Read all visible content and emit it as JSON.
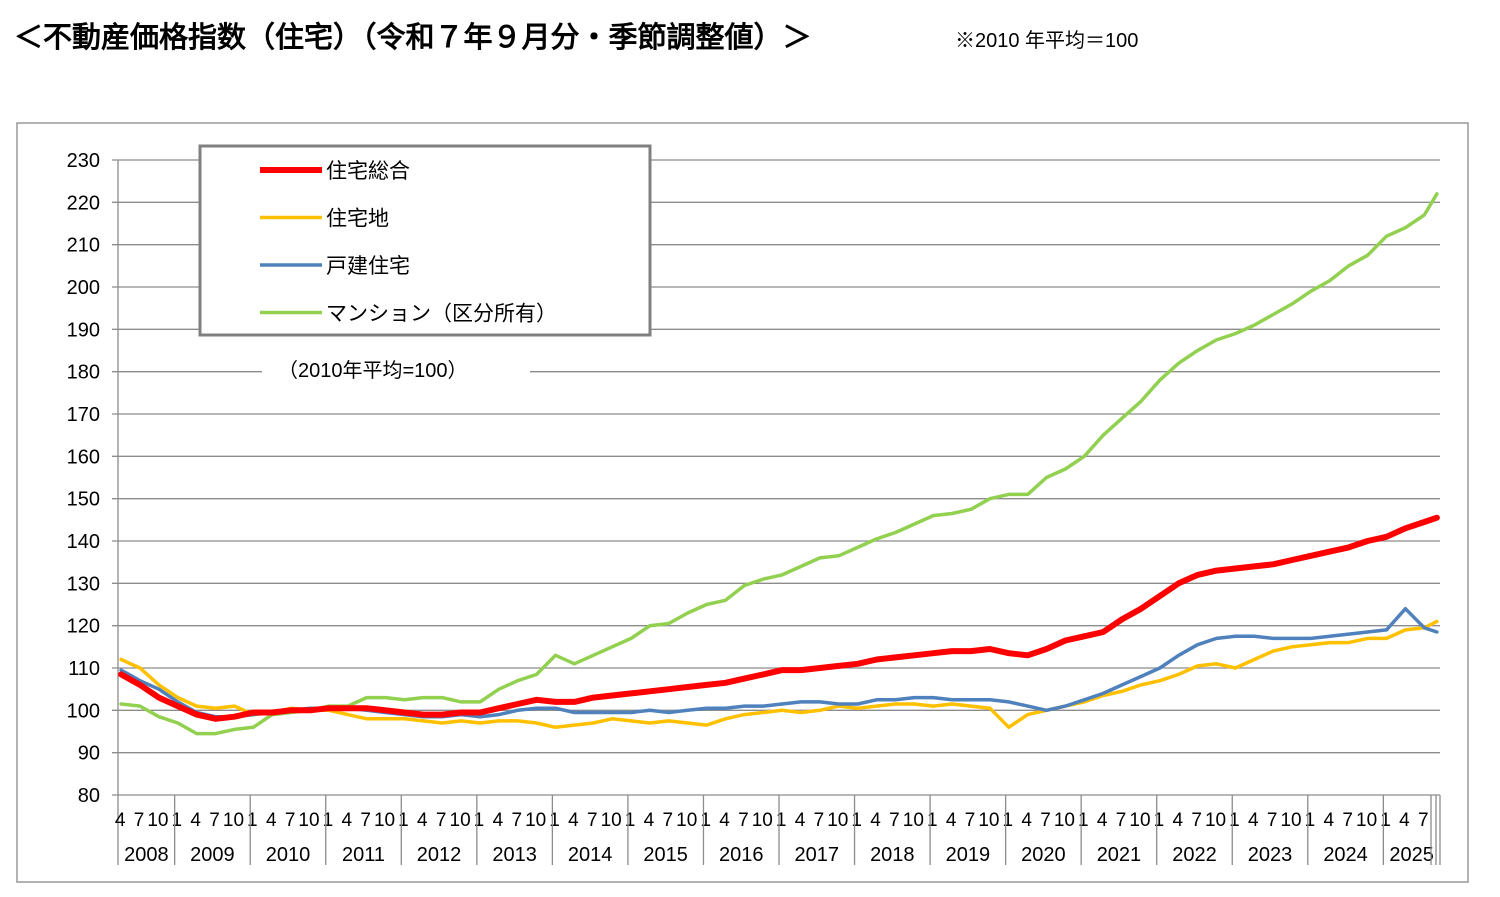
{
  "title": "＜不動産価格指数（住宅）（令和７年９月分・季節調整値）＞",
  "note": "※2010 年平均＝100",
  "chart_data": {
    "type": "line",
    "title": "＜不動産価格指数（住宅）（令和７年９月分・季節調整値）＞",
    "base_note": "（2010年平均=100）",
    "xlabel": "",
    "ylabel": "",
    "ylim": [
      80,
      230
    ],
    "yticks": [
      "80",
      "90",
      "100",
      "110",
      "120",
      "130",
      "140",
      "150",
      "160",
      "170",
      "180",
      "190",
      "200",
      "210",
      "220",
      "230"
    ],
    "grid": true,
    "legend_position": "top-left",
    "x_start": "2008-04",
    "x_unit": "months since 2008-04",
    "month_ticks": [
      "4",
      "7",
      "10",
      "1"
    ],
    "years": [
      "2008",
      "2009",
      "2010",
      "2011",
      "2012",
      "2013",
      "2014",
      "2015",
      "2016",
      "2017",
      "2018",
      "2019",
      "2020",
      "2021",
      "2022",
      "2023",
      "2024",
      "2025"
    ],
    "x": [
      0,
      3,
      6,
      9,
      12,
      15,
      18,
      21,
      24,
      27,
      30,
      33,
      36,
      39,
      42,
      45,
      48,
      51,
      54,
      57,
      60,
      63,
      66,
      69,
      72,
      75,
      78,
      81,
      84,
      87,
      90,
      93,
      96,
      99,
      102,
      105,
      108,
      111,
      114,
      117,
      120,
      123,
      126,
      129,
      132,
      135,
      138,
      141,
      144,
      147,
      150,
      153,
      156,
      159,
      162,
      165,
      168,
      171,
      174,
      177,
      180,
      183,
      186,
      189,
      192,
      195,
      198,
      201,
      204,
      207,
      209
    ],
    "series": [
      {
        "name": "住宅総合",
        "color": "#FF0000",
        "width": 6,
        "values": [
          108.5,
          106,
          103,
          101,
          99,
          98,
          98.5,
          99.5,
          99.5,
          100,
          100,
          100.5,
          100.5,
          100.5,
          100,
          99.5,
          99,
          99,
          99.5,
          99.5,
          100.5,
          101.5,
          102.5,
          102,
          102,
          103,
          103.5,
          104,
          104.5,
          105,
          105.5,
          106,
          106.5,
          107.5,
          108.5,
          109.5,
          109.5,
          110,
          110.5,
          111,
          112,
          112.5,
          113,
          113.5,
          114,
          114,
          114.5,
          113.5,
          113,
          114.5,
          116.5,
          117.5,
          118.5,
          121.5,
          124,
          127,
          130,
          132,
          133,
          133.5,
          134,
          134.5,
          135.5,
          136.5,
          137.5,
          138.5,
          140,
          141,
          143,
          144.5,
          145.5
        ]
      },
      {
        "name": "住宅地",
        "color": "#FFC000",
        "width": 3.5,
        "values": [
          112,
          110,
          106,
          103,
          101,
          100.5,
          101,
          99,
          99.5,
          100.5,
          100,
          100,
          99,
          98,
          98,
          98,
          97.5,
          97,
          97.5,
          97,
          97.5,
          97.5,
          97,
          96,
          96.5,
          97,
          98,
          97.5,
          97,
          97.5,
          97,
          96.5,
          98,
          99,
          99.5,
          100,
          99.5,
          100,
          101,
          100.5,
          101,
          101.5,
          101.5,
          101,
          101.5,
          101,
          100.5,
          96,
          99,
          100,
          101,
          102,
          103.5,
          104.5,
          106,
          107,
          108.5,
          110.5,
          111,
          110,
          112,
          114,
          115,
          115.5,
          116,
          116,
          117,
          117,
          119,
          119.5,
          121
        ]
      },
      {
        "name": "戸建住宅",
        "color": "#4F81BD",
        "width": 3.5,
        "values": [
          109.5,
          107,
          105,
          102,
          99.5,
          98.5,
          98.5,
          99,
          99.5,
          100,
          100.5,
          100.5,
          100.5,
          100,
          99.5,
          99,
          98.5,
          98.5,
          99,
          98.5,
          99,
          100,
          100.5,
          100.5,
          99.5,
          99.5,
          99.5,
          99.5,
          100,
          99.5,
          100,
          100.5,
          100.5,
          101,
          101,
          101.5,
          102,
          102,
          101.5,
          101.5,
          102.5,
          102.5,
          103,
          103,
          102.5,
          102.5,
          102.5,
          102,
          101,
          100,
          101,
          102.5,
          104,
          106,
          108,
          110,
          113,
          115.5,
          117,
          117.5,
          117.5,
          117,
          117,
          117,
          117.5,
          118,
          118.5,
          119,
          124,
          119.5,
          118.5
        ]
      },
      {
        "name": "マンション（区分所有）",
        "color": "#92D050",
        "width": 3.5,
        "values": [
          101.5,
          101,
          98.5,
          97,
          94.5,
          94.5,
          95.5,
          96,
          99,
          99.5,
          100,
          101,
          101,
          103,
          103,
          102.5,
          103,
          103,
          102,
          102,
          105,
          107,
          108.5,
          113,
          111,
          113,
          115,
          117,
          120,
          120.5,
          123,
          125,
          126,
          129.5,
          131,
          132,
          134,
          136,
          136.5,
          138.5,
          140.5,
          142,
          144,
          146,
          146.5,
          147.5,
          150,
          151,
          151,
          155,
          157,
          160,
          165,
          169,
          173,
          178,
          182,
          185,
          187.5,
          189,
          191,
          193.5,
          196,
          199,
          201.5,
          205,
          207.5,
          212,
          214,
          217,
          222
        ]
      }
    ]
  }
}
